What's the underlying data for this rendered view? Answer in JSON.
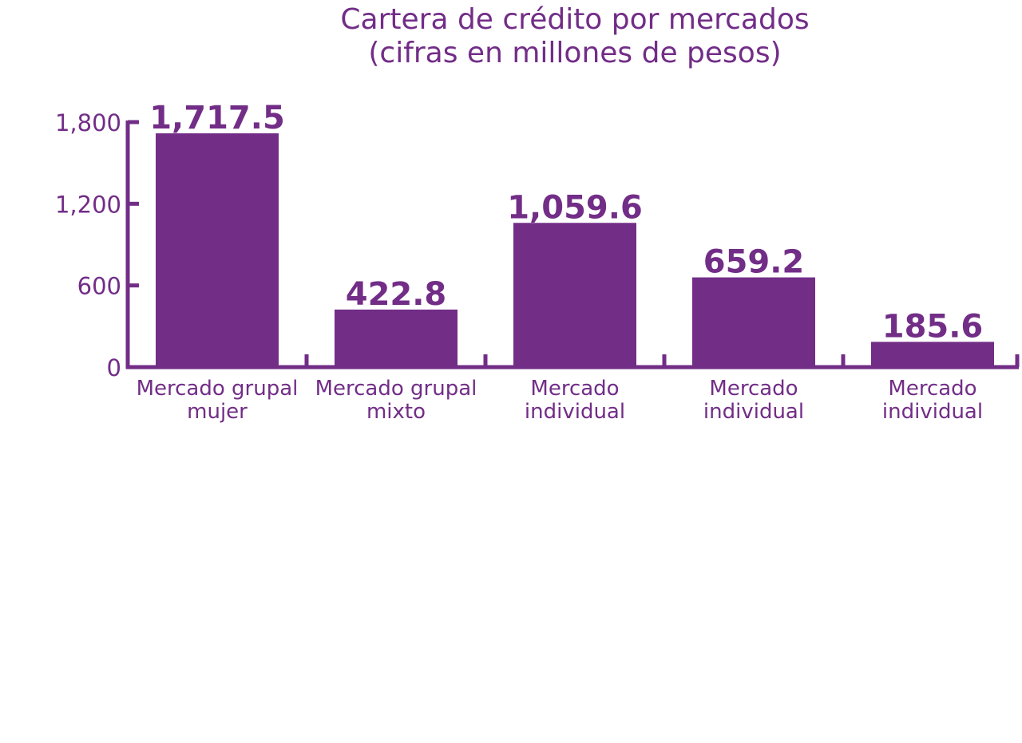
{
  "colors": {
    "primary": "#722D87",
    "background": "#FFFFFF"
  },
  "chart_data": {
    "type": "bar",
    "title": "Cartera de crédito por mercados",
    "subtitle": "(cifras en millones de pesos)",
    "xlabel": "",
    "ylabel": "",
    "categories": [
      [
        "Mercado grupal",
        "mujer"
      ],
      [
        "Mercado grupal",
        "mixto"
      ],
      [
        "Mercado",
        "individual"
      ],
      [
        "Mercado",
        "individual"
      ],
      [
        "Mercado",
        "individual"
      ]
    ],
    "values": [
      1717.5,
      422.8,
      1059.6,
      659.2,
      185.6
    ],
    "value_labels": [
      "1,717.5",
      "422.8",
      "1,059.6",
      "659.2",
      "185.6"
    ],
    "y_ticks": [
      {
        "value": 0,
        "label": "0"
      },
      {
        "value": 600,
        "label": "600"
      },
      {
        "value": 1200,
        "label": "1,200"
      },
      {
        "value": 1800,
        "label": "1,800"
      }
    ],
    "ylim": [
      0,
      1800
    ],
    "grid": false,
    "legend": "none"
  }
}
